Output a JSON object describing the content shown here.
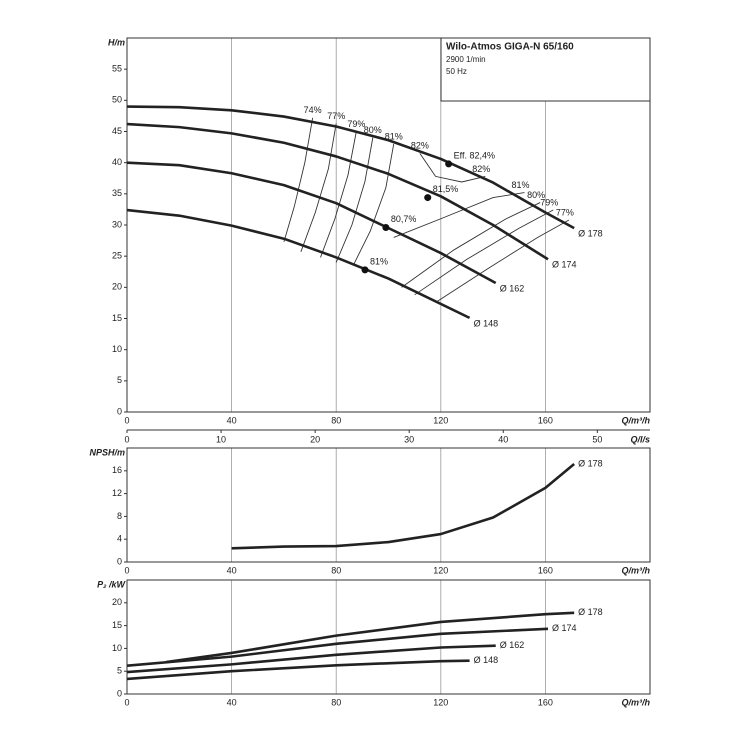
{
  "chart_data": [
    {
      "type": "line",
      "ylabel": "H/m",
      "xlabel": "Q/m³/h",
      "x2label": "Q/l/s",
      "xlim": [
        0,
        200
      ],
      "xticks": [
        0,
        40,
        80,
        120,
        160
      ],
      "x2lim": [
        0,
        55.6
      ],
      "x2ticks": [
        0,
        10,
        20,
        30,
        40,
        50
      ],
      "ylim": [
        0,
        60
      ],
      "yticks": [
        0,
        5,
        10,
        15,
        20,
        25,
        30,
        35,
        40,
        45,
        50,
        55
      ],
      "grid": "x",
      "info_box": {
        "title": "Wilo-Atmos GIGA-N 65/160",
        "lines": [
          "2900 1/min",
          "50 Hz"
        ]
      },
      "series": [
        {
          "name": "Ø 178",
          "color": "#222222",
          "x": [
            0,
            20,
            40,
            60,
            80,
            100,
            120,
            140,
            160,
            171
          ],
          "values": [
            49,
            48.9,
            48.4,
            47.4,
            45.8,
            43.6,
            40.6,
            36.8,
            32,
            29.5
          ]
        },
        {
          "name": "Ø 174",
          "color": "#222222",
          "x": [
            0,
            20,
            40,
            60,
            80,
            100,
            120,
            140,
            161
          ],
          "values": [
            46.2,
            45.7,
            44.7,
            43.2,
            41,
            38.2,
            34.6,
            30,
            24.5
          ]
        },
        {
          "name": "Ø 162",
          "color": "#222222",
          "x": [
            0,
            20,
            40,
            60,
            80,
            100,
            120,
            141
          ],
          "values": [
            40,
            39.6,
            38.3,
            36.4,
            33.5,
            29.5,
            25.5,
            20.7
          ]
        },
        {
          "name": "Ø 148",
          "color": "#222222",
          "x": [
            0,
            20,
            40,
            60,
            80,
            100,
            131
          ],
          "values": [
            32.4,
            31.5,
            29.9,
            27.8,
            24.8,
            21.4,
            15.1
          ]
        }
      ],
      "efficiency_lines": [
        {
          "label": "74%",
          "label_at": "start",
          "x": [
            71,
            68,
            64,
            60
          ],
          "y": [
            47.2,
            40,
            33,
            27.3
          ]
        },
        {
          "label": "77%",
          "label_at": "start",
          "x": [
            80,
            77,
            72,
            66.5
          ],
          "y": [
            46.3,
            39,
            32,
            25.7
          ]
        },
        {
          "label": "79%",
          "label_at": "start",
          "x": [
            87.7,
            84.5,
            79.5,
            74
          ],
          "y": [
            45,
            38,
            31,
            24.8
          ]
        },
        {
          "label": "80%",
          "label_at": "start",
          "x": [
            94,
            91,
            86,
            80
          ],
          "y": [
            44,
            37,
            30,
            24
          ]
        },
        {
          "label": "81%",
          "label_at": "start",
          "x": [
            102,
            99,
            93,
            86.5
          ],
          "y": [
            43,
            36,
            29,
            23.5
          ]
        },
        {
          "label": "82%",
          "label_at": "both",
          "x": [
            112,
            118,
            128,
            137
          ],
          "y": [
            41.5,
            37.8,
            36.9,
            37.8
          ]
        },
        {
          "label": "81%",
          "label_at": "end",
          "x": [
            102,
            120,
            140,
            152
          ],
          "y": [
            28,
            31,
            34.4,
            35.2
          ]
        },
        {
          "label": "80%",
          "label_at": "end",
          "x": [
            105,
            125,
            145,
            158
          ],
          "y": [
            20,
            26,
            31,
            33.6
          ]
        },
        {
          "label": "79%",
          "label_at": "end",
          "x": [
            110,
            130,
            150,
            163
          ],
          "y": [
            18.8,
            24.5,
            29.5,
            32.4
          ]
        },
        {
          "label": "77%",
          "label_at": "end",
          "x": [
            118.5,
            138,
            157,
            169
          ],
          "y": [
            17.7,
            23,
            28,
            30.8
          ]
        }
      ],
      "points": [
        {
          "label": "Eff. 82,4%",
          "x": 123,
          "y": 39.8
        },
        {
          "label": "81,5%",
          "x": 115,
          "y": 34.4
        },
        {
          "label": "80,7%",
          "x": 99,
          "y": 29.6
        },
        {
          "label": "81%",
          "x": 91,
          "y": 22.8
        }
      ]
    },
    {
      "type": "line",
      "ylabel": "NPSH/m",
      "xlabel": "Q/m³/h",
      "xlim": [
        0,
        200
      ],
      "xticks": [
        0,
        40,
        80,
        120,
        160
      ],
      "ylim": [
        0,
        20
      ],
      "yticks": [
        0,
        4,
        8,
        12,
        16
      ],
      "grid": "x",
      "series": [
        {
          "name": "Ø 178",
          "color": "#222222",
          "x": [
            40,
            60,
            80,
            100,
            120,
            140,
            160,
            171
          ],
          "values": [
            2.4,
            2.7,
            2.8,
            3.5,
            4.9,
            7.8,
            13,
            17.2
          ]
        }
      ]
    },
    {
      "type": "line",
      "ylabel": "P₂ /kW",
      "xlabel": "Q/m³/h",
      "xlim": [
        0,
        200
      ],
      "xticks": [
        0,
        40,
        80,
        120,
        160
      ],
      "ylim": [
        0,
        25
      ],
      "yticks": [
        0,
        5,
        10,
        15,
        20
      ],
      "grid": "x",
      "series": [
        {
          "name": "Ø 178",
          "color": "#222222",
          "x": [
            15,
            40,
            80,
            120,
            160,
            171
          ],
          "values": [
            7,
            9,
            12.8,
            15.8,
            17.5,
            17.8
          ]
        },
        {
          "name": "Ø 174",
          "color": "#222222",
          "x": [
            0,
            40,
            80,
            120,
            161
          ],
          "values": [
            6.2,
            8.2,
            11,
            13.2,
            14.3
          ]
        },
        {
          "name": "Ø 162",
          "color": "#222222",
          "x": [
            0,
            40,
            80,
            120,
            141
          ],
          "values": [
            4.8,
            6.5,
            8.6,
            10.2,
            10.6
          ]
        },
        {
          "name": "Ø 148",
          "color": "#222222",
          "x": [
            0,
            40,
            80,
            120,
            131
          ],
          "values": [
            3.3,
            5,
            6.3,
            7.2,
            7.3
          ]
        }
      ]
    }
  ]
}
